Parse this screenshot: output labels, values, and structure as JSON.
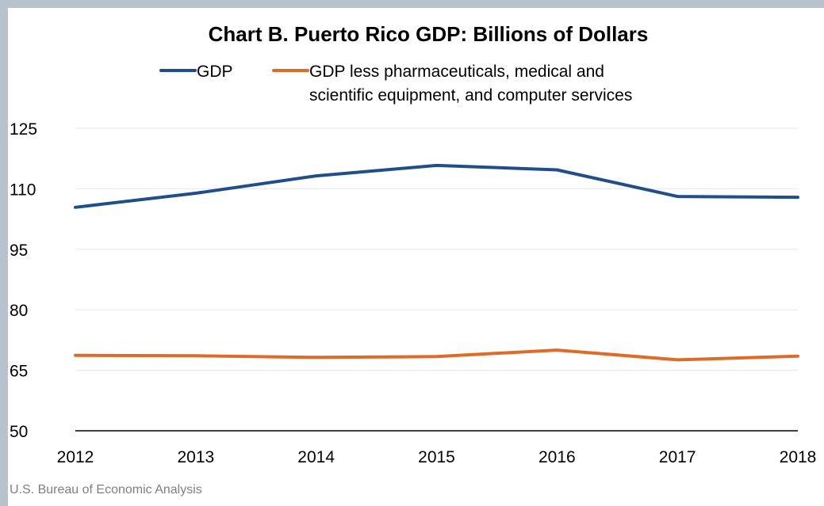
{
  "chart_data": {
    "type": "line",
    "title": "Chart B. Puerto Rico GDP: Billions of Dollars",
    "x": [
      "2012",
      "2013",
      "2014",
      "2015",
      "2016",
      "2017",
      "2018"
    ],
    "y_ticks": [
      "125",
      "110",
      "95",
      "80",
      "65",
      "50"
    ],
    "ylim": [
      50,
      125
    ],
    "grid": true,
    "legend_position": "top",
    "series": [
      {
        "name": "GDP",
        "color": "#1f4e8c",
        "values": [
          105.4,
          108.9,
          113.2,
          115.8,
          114.7,
          108.1,
          107.9
        ]
      },
      {
        "name_lines": [
          "GDP less pharmaceuticals, medical and",
          "scientific equipment, and computer services"
        ],
        "color": "#e06b26",
        "values": [
          68.7,
          68.6,
          68.2,
          68.4,
          70.0,
          67.6,
          68.5
        ]
      }
    ]
  },
  "source": "U.S. Bureau of Economic Analysis"
}
